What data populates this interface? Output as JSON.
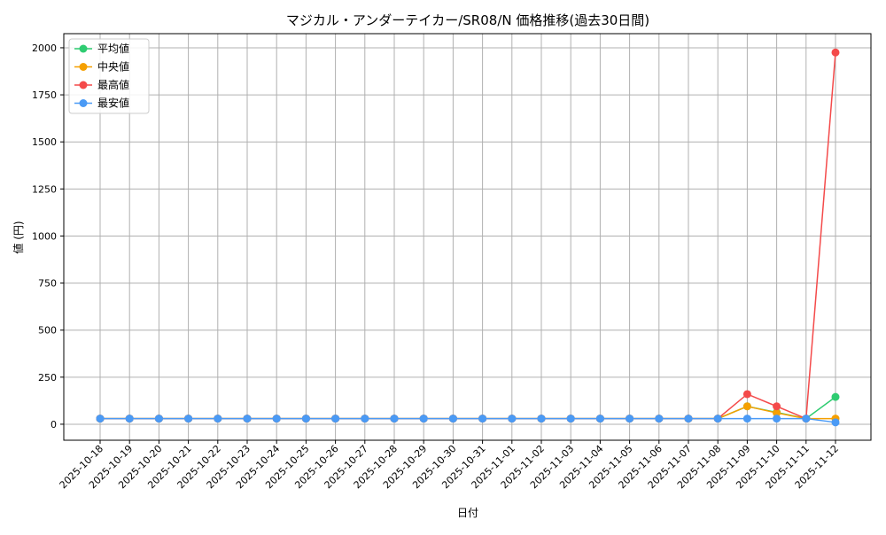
{
  "chart_data": {
    "type": "line",
    "title": "マジカル・アンダーテイカー/SR08/N 価格推移(過去30日間)",
    "xlabel": "日付",
    "ylabel": "値 (円)",
    "ylim": [
      -85,
      2075
    ],
    "yticks": [
      0,
      250,
      500,
      750,
      1000,
      1250,
      1500,
      1750,
      2000
    ],
    "grid": true,
    "legend_position": "top-left",
    "x": [
      "2025-10-18",
      "2025-10-19",
      "2025-10-20",
      "2025-10-21",
      "2025-10-22",
      "2025-10-23",
      "2025-10-24",
      "2025-10-25",
      "2025-10-26",
      "2025-10-27",
      "2025-10-28",
      "2025-10-29",
      "2025-10-30",
      "2025-10-31",
      "2025-11-01",
      "2025-11-02",
      "2025-11-03",
      "2025-11-04",
      "2025-11-05",
      "2025-11-06",
      "2025-11-07",
      "2025-11-08",
      "2025-11-09",
      "2025-11-10",
      "2025-11-11",
      "2025-11-12"
    ],
    "series": [
      {
        "name": "平均値",
        "color": "#2ecc71",
        "values": [
          30,
          30,
          30,
          30,
          30,
          30,
          30,
          30,
          30,
          30,
          30,
          30,
          30,
          30,
          30,
          30,
          30,
          30,
          30,
          30,
          30,
          30,
          95,
          63,
          30,
          145
        ]
      },
      {
        "name": "中央値",
        "color": "#f5a000",
        "values": [
          30,
          30,
          30,
          30,
          30,
          30,
          30,
          30,
          30,
          30,
          30,
          30,
          30,
          30,
          30,
          30,
          30,
          30,
          30,
          30,
          30,
          30,
          95,
          60,
          30,
          30
        ]
      },
      {
        "name": "最高値",
        "color": "#f44a4a",
        "values": [
          30,
          30,
          30,
          30,
          30,
          30,
          30,
          30,
          30,
          30,
          30,
          30,
          30,
          30,
          30,
          30,
          30,
          30,
          30,
          30,
          30,
          30,
          160,
          95,
          30,
          1975
        ]
      },
      {
        "name": "最安値",
        "color": "#4a9af5",
        "values": [
          30,
          30,
          30,
          30,
          30,
          30,
          30,
          30,
          30,
          30,
          30,
          30,
          30,
          30,
          30,
          30,
          30,
          30,
          30,
          30,
          30,
          30,
          30,
          30,
          30,
          10
        ]
      }
    ]
  }
}
